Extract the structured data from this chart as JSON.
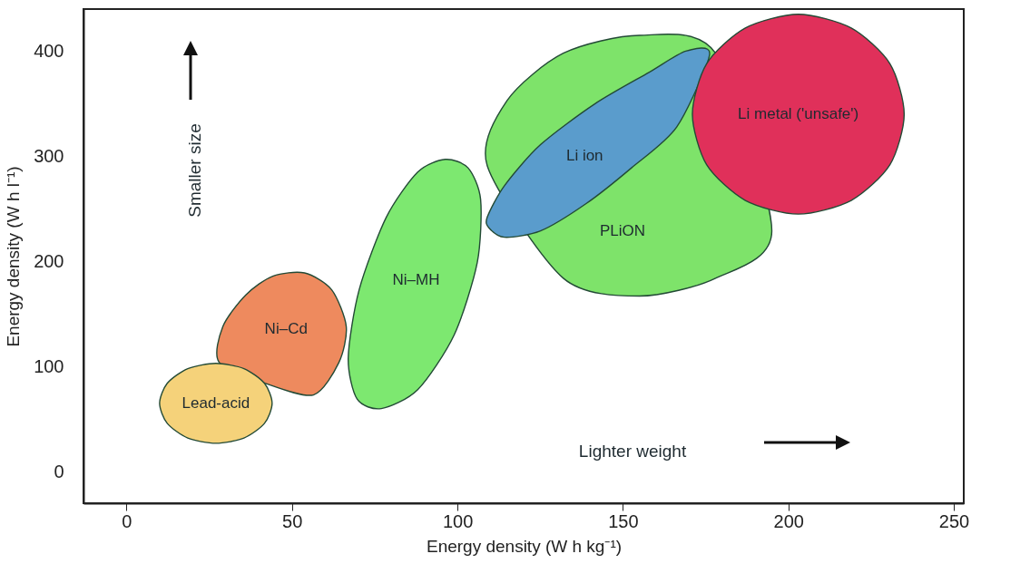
{
  "chart_data": {
    "type": "area",
    "xlabel": "Energy density (W h kg⁻¹)",
    "ylabel": "Energy density (W h l⁻¹)",
    "xlim": [
      -13,
      253
    ],
    "xticks": [
      0,
      50,
      100,
      150,
      200,
      250
    ],
    "ylim": [
      -30,
      440
    ],
    "yticks": [
      0,
      100,
      200,
      300,
      400
    ],
    "annotations": [
      "Smaller size",
      "Lighter weight"
    ],
    "series": [
      {
        "name": "Ni–Cd",
        "color": "#ee8a5e",
        "x": [
          53.8,
          62,
          66.4,
          64.2,
          56.5,
          42,
          28,
          29.1,
          36,
          44.2
        ],
        "values": [
          189,
          173,
          138,
          104,
          73,
          84,
          104,
          138,
          168,
          186
        ]
      },
      {
        "name": "Lead-acid",
        "color": "#f5d27a",
        "x": [
          44,
          41.7,
          35.5,
          27,
          18.5,
          12.3,
          10,
          12.3,
          18.5,
          27,
          35.5,
          41.7
        ],
        "values": [
          65,
          84,
          98,
          103,
          98,
          84,
          65,
          46,
          32,
          27,
          32,
          46
        ]
      },
      {
        "name": "Ni–MH",
        "color": "#7de870",
        "x": [
          96.3,
          103.2,
          107,
          106,
          99,
          88,
          77,
          69.7,
          67,
          70.3,
          78.5,
          88
        ],
        "values": [
          297,
          289,
          259,
          199,
          130,
          78,
          60,
          69,
          108,
          173,
          242,
          285
        ]
      },
      {
        "name": "PLiON",
        "color": "#7ee36a",
        "x": [
          178,
          155,
          132,
          115,
          109,
          132,
          155,
          178,
          195
        ],
        "values": [
          398,
          415,
          398,
          353,
          291,
          184,
          167,
          184,
          229
        ]
      },
      {
        "name": "Li ion",
        "color": "#5a9ccc",
        "x": [
          109,
          114.2,
          125.1,
          141.6,
          158,
          169,
          176.2,
          166.3,
          152.6,
          138.9,
          125.1,
          114.2,
          109.5
        ],
        "values": [
          242,
          272,
          311,
          350,
          380,
          400,
          397,
          328,
          289,
          255,
          229,
          223,
          232
        ]
      },
      {
        "name": "Li metal ('unsafe')",
        "color": "#e0305a",
        "x": [
          235,
          230.7,
          219,
          203,
          187,
          175.3,
          171,
          175.3,
          187,
          203,
          219,
          230.7
        ],
        "values": [
          340,
          388,
          422,
          435,
          422,
          388,
          340,
          292,
          258,
          245,
          258,
          292
        ]
      }
    ]
  }
}
